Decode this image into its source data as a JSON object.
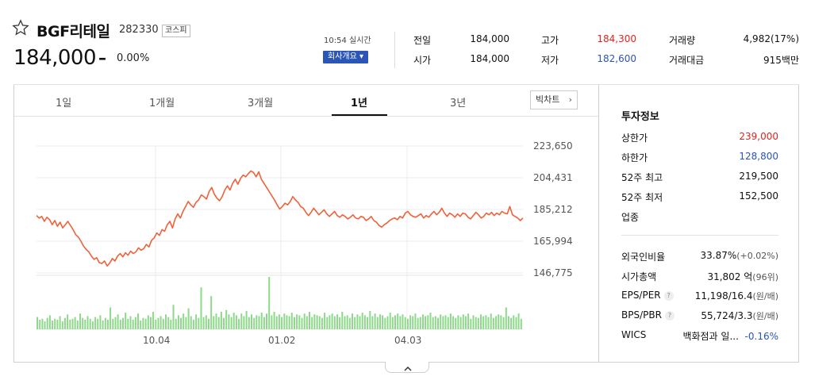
{
  "header": {
    "name": "BGF리테일",
    "code": "282330",
    "market": "코스피",
    "price": "184,000",
    "change_sign": "–",
    "change_rate": "0.00%",
    "time": "10:54 실시간",
    "company_button": "회사개요 ▾"
  },
  "quote": {
    "prev_close": {
      "label": "전일",
      "value": "184,000"
    },
    "open": {
      "label": "시가",
      "value": "184,000"
    },
    "high": {
      "label": "고가",
      "value": "184,300"
    },
    "low": {
      "label": "저가",
      "value": "182,600"
    },
    "volume": {
      "label": "거래량",
      "value": "4,982(17%)"
    },
    "amount": {
      "label": "거래대금",
      "value": "915백만"
    }
  },
  "tabs": [
    "1일",
    "1개월",
    "3개월",
    "1년",
    "3년"
  ],
  "active_tab": "1년",
  "bitchart_label": "빅차트",
  "chart_data": {
    "type": "line",
    "x_ticks": [
      "10.04",
      "01.02",
      "04.03"
    ],
    "y_ticks": [
      223650,
      204431,
      185212,
      165994,
      146775
    ],
    "y_tick_labels": [
      "223,650",
      "204,431",
      "185,212",
      "165,994",
      "146,775"
    ],
    "ylim": [
      146775,
      223650
    ],
    "series": [
      {
        "color": "#f0613a",
        "values": [
          181500,
          180000,
          181000,
          178000,
          180500,
          179000,
          176000,
          178500,
          175000,
          177500,
          174000,
          176000,
          178000,
          175500,
          173000,
          170000,
          168500,
          166000,
          163000,
          161000,
          159500,
          157000,
          155000,
          156000,
          153000,
          152500,
          154000,
          151000,
          152800,
          155500,
          154000,
          157000,
          158500,
          156500,
          159000,
          157500,
          160000,
          158500,
          159500,
          162000,
          160500,
          161500,
          164000,
          162500,
          166500,
          168000,
          171000,
          169500,
          173000,
          172000,
          176000,
          178000,
          174000,
          179500,
          182500,
          180000,
          184000,
          187000,
          190000,
          188000,
          186500,
          189500,
          191000,
          194000,
          193000,
          191500,
          196000,
          198500,
          194500,
          192000,
          190500,
          193000,
          197000,
          199500,
          197000,
          201000,
          203500,
          200500,
          204000,
          206000,
          205000,
          207000,
          208500,
          207500,
          205000,
          208000,
          203500,
          201000,
          198500,
          196000,
          193500,
          191000,
          188000,
          185500,
          187000,
          189000,
          188000,
          190000,
          193000,
          191000,
          189500,
          187000,
          186000,
          183500,
          181500,
          183500,
          186000,
          184000,
          182000,
          183500,
          185000,
          182500,
          181000,
          182500,
          184000,
          181500,
          180500,
          182000,
          181000,
          179500,
          180500,
          182000,
          180000,
          179500,
          181000,
          180500,
          178500,
          179500,
          181000,
          178500,
          177500,
          175500,
          174500,
          176000,
          177000,
          178500,
          179500,
          180000,
          179000,
          181000,
          180000,
          183000,
          184000,
          182000,
          181000,
          180500,
          181500,
          182500,
          180000,
          181500,
          180500,
          182500,
          184000,
          182000,
          183500,
          186000,
          183000,
          181000,
          183000,
          182000,
          180500,
          182500,
          181000,
          183000,
          182500,
          180500,
          179500,
          181500,
          183500,
          182000,
          180000,
          181000,
          183000,
          182000,
          183500,
          181500,
          183000,
          182000,
          184000,
          183000,
          182500,
          187000,
          182000,
          181000,
          180000,
          178500,
          180000
        ]
      }
    ],
    "volume": [
      14,
      11,
      12,
      9,
      13,
      16,
      10,
      12,
      11,
      15,
      9,
      13,
      17,
      11,
      12,
      14,
      10,
      18,
      13,
      11,
      15,
      12,
      9,
      14,
      12,
      16,
      10,
      13,
      11,
      25,
      12,
      14,
      17,
      11,
      13,
      19,
      12,
      15,
      11,
      14,
      18,
      10,
      13,
      12,
      16,
      14,
      20,
      11,
      13,
      15,
      12,
      17,
      14,
      11,
      28,
      12,
      16,
      13,
      18,
      14,
      24,
      15,
      11,
      17,
      13,
      48,
      14,
      16,
      12,
      38,
      15,
      18,
      14,
      20,
      13,
      22,
      17,
      14,
      19,
      16,
      12,
      18,
      15,
      21,
      14,
      17,
      13,
      16,
      15,
      19,
      14,
      18,
      60,
      16,
      20,
      15,
      17,
      14,
      18,
      16,
      15,
      19,
      14,
      17,
      16,
      13,
      18,
      15,
      20,
      14,
      17,
      16,
      15,
      13,
      19,
      14,
      16,
      18,
      15,
      17,
      14,
      20,
      15,
      16,
      13,
      18,
      14,
      17,
      15,
      19,
      16,
      14,
      21,
      15,
      18,
      14,
      17,
      16,
      13,
      15,
      19,
      14,
      16,
      18,
      15,
      17,
      14,
      12,
      16,
      15,
      18,
      13,
      14,
      17,
      15,
      16,
      19,
      14,
      15,
      13,
      17,
      15,
      16,
      14,
      18,
      15,
      13,
      16,
      14,
      17,
      15,
      18,
      12,
      16,
      14,
      13,
      17,
      15,
      16,
      14,
      18,
      13,
      15,
      17,
      16,
      14,
      25,
      15,
      13,
      16,
      14,
      18,
      12
    ]
  },
  "info": {
    "title": "투자정보",
    "rows1": [
      {
        "label": "상한가",
        "value": "239,000",
        "color": "#e0241f"
      },
      {
        "label": "하한가",
        "value": "128,800",
        "color": "#2b55b6"
      },
      {
        "label": "52주 최고",
        "value": "219,500",
        "color": "#111111"
      },
      {
        "label": "52주 최저",
        "value": "152,500",
        "color": "#111111"
      },
      {
        "label": "업종",
        "value": "",
        "color": "#111111"
      }
    ],
    "foreign": {
      "label": "외국인비율",
      "value": "33.87%",
      "extra": "(+0.02%)"
    },
    "market_cap": {
      "label": "시가총액",
      "value": "31,802 억",
      "extra": "(96위)"
    },
    "eps": {
      "label": "EPS/PER",
      "value": "11,198/16.4",
      "extra": "(원/배)"
    },
    "bps": {
      "label": "BPS/PBR",
      "value": "55,724/3.3",
      "extra": "(원/배)"
    },
    "wics": {
      "label": "WICS",
      "value": "백화점과 일...",
      "change": "-0.16%"
    }
  },
  "colors": {
    "up": "#e0241f",
    "down": "#2b55b6",
    "line": "#f0613a",
    "volume": "#8ed88a"
  }
}
